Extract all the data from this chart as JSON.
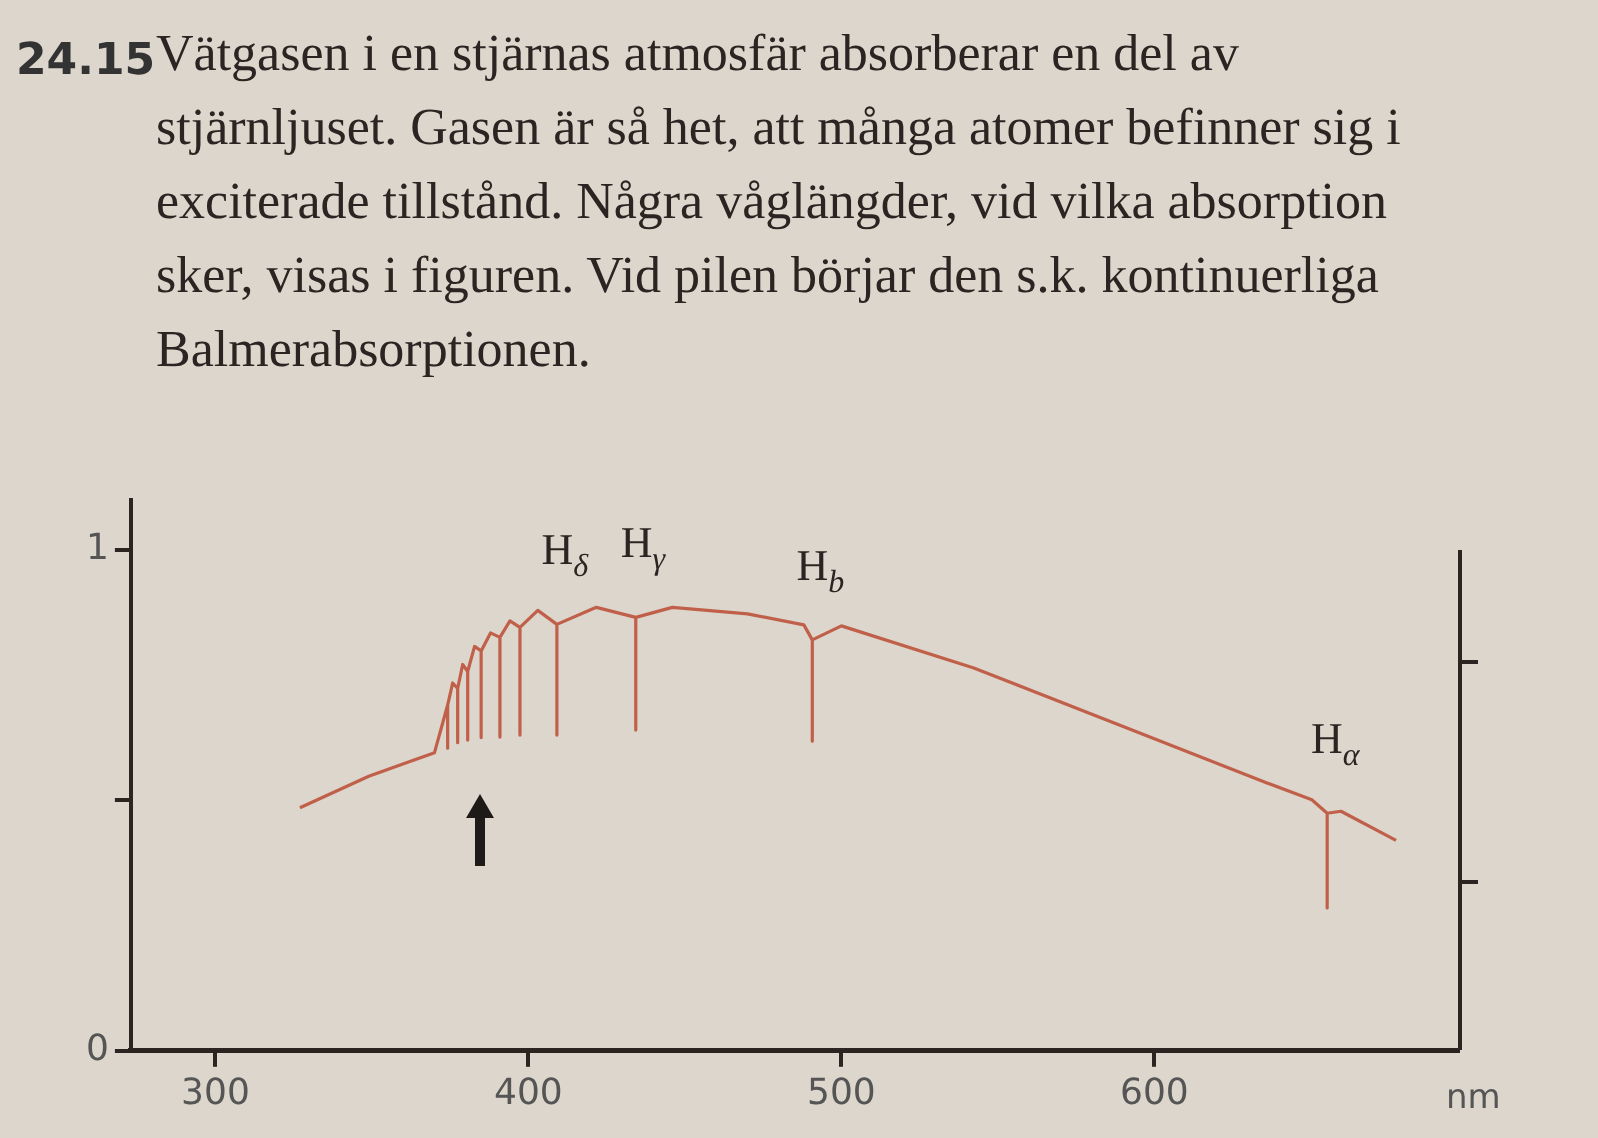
{
  "chart_data": {
    "type": "line",
    "title": "Vätgasen i en stjärnas atmosfär absorberar en del av stjärnljuset. Gasen är så het, att många atomer befinner sig i exciterade tillstånd. Några våglängder, vid vilka absorption sker, visas i figuren. Vid pilen börjar den s.k. kontinuerliga Balmerabsorptionen.",
    "xlabel": "nm",
    "annotations": [
      "24.15",
      {
        "text": "H$_{δ}$",
        "x": 409.1,
        "y": 0.851
      },
      {
        "text": "H$_{γ}$",
        "x": 434.3,
        "y": 0.865
      },
      {
        "text": "H$_{b}$",
        "x": 490.7,
        "y": 0.82
      },
      {
        "text": "H$_{α}$",
        "x": 655.2,
        "y": 0.474
      }
    ],
    "series": [
      {
        "color": "#c0604a",
        "x": [
          327,
          349,
          370,
          374.2,
          374.2,
          374.2,
          375.8,
          377.4,
          377.4,
          377.4,
          379,
          380.6,
          380.6,
          380.6,
          382.8,
          384.9,
          384.9,
          384.9,
          387.9,
          390.9,
          390.9,
          390.9,
          394.1,
          397.3,
          397.3,
          397.3,
          403,
          409.1,
          409.1,
          409.1,
          421.7,
          434.3,
          434.3,
          434.3,
          446,
          470,
          488,
          490.7,
          490.7,
          490.7,
          500,
          542.3,
          589.2,
          636.2,
          650.3,
          655.2,
          655.2,
          655.2,
          659.6,
          677.2
        ],
        "values": [
          0.485,
          0.548,
          0.595,
          0.69,
          0.604,
          0.69,
          0.734,
          0.723,
          0.615,
          0.723,
          0.771,
          0.757,
          0.62,
          0.757,
          0.807,
          0.798,
          0.625,
          0.798,
          0.834,
          0.825,
          0.626,
          0.825,
          0.858,
          0.845,
          0.63,
          0.845,
          0.879,
          0.851,
          0.63,
          0.851,
          0.885,
          0.865,
          0.64,
          0.865,
          0.885,
          0.872,
          0.85,
          0.82,
          0.618,
          0.82,
          0.848,
          0.764,
          0.649,
          0.534,
          0.501,
          0.474,
          0.285,
          0.474,
          0.478,
          0.42
        ]
      }
    ],
    "xlim": [
      273,
      697
    ],
    "xticks": [
      300,
      400,
      500,
      600
    ],
    "ylim": [
      0,
      1.1
    ],
    "yticks": [
      0,
      {
        "value": 0.5,
        "label": null
      },
      1
    ],
    "grid": false,
    "legend": false,
    "marker": "none",
    "line_style": "solid"
  }
}
